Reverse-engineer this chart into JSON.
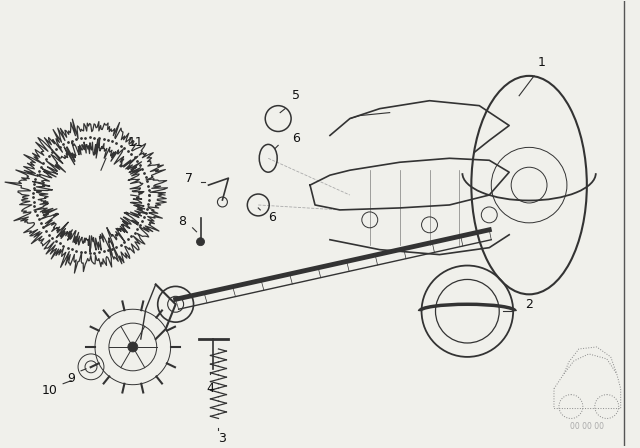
{
  "bg_color": "#f0f0eb",
  "line_color": "#333333",
  "label_color": "#111111",
  "watermark": "00 00 00",
  "figsize": [
    6.4,
    4.48
  ],
  "dpi": 100
}
